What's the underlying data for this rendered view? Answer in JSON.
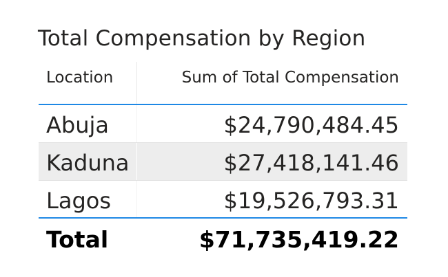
{
  "visual": {
    "title": "Total Compensation by Region"
  },
  "table": {
    "headers": {
      "location": "Location",
      "sum": "Sum of Total Compensation"
    },
    "rows": [
      {
        "location": "Abuja",
        "value": "$24,790,484.45"
      },
      {
        "location": "Kaduna",
        "value": "$27,418,141.46"
      },
      {
        "location": "Lagos",
        "value": "$19,526,793.31"
      }
    ],
    "total": {
      "label": "Total",
      "value": "$71,735,419.22"
    }
  },
  "colors": {
    "accent_line": "#1e88e5",
    "alt_row_bg": "#ededed",
    "text": "#252423"
  }
}
